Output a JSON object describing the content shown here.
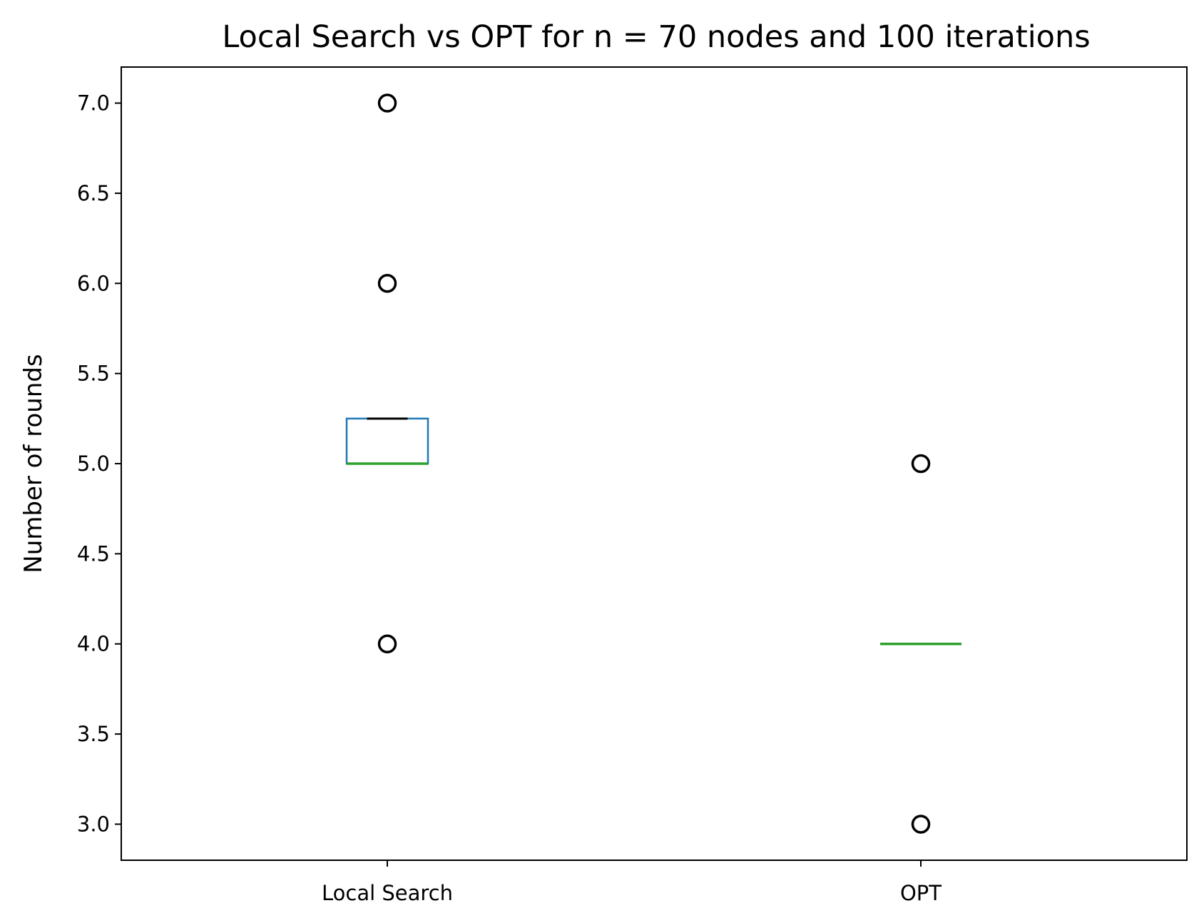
{
  "chart_data": {
    "type": "box",
    "title": "Local Search vs OPT for n = 70 nodes and 100 iterations",
    "xlabel": "",
    "ylabel": "Number of rounds",
    "ylim": [
      2.8,
      7.2
    ],
    "yticks": [
      "3.0",
      "3.5",
      "4.0",
      "4.5",
      "5.0",
      "5.5",
      "6.0",
      "6.5",
      "7.0"
    ],
    "categories": [
      "Local Search",
      "OPT"
    ],
    "boxes": [
      {
        "name": "Local Search",
        "q1": 5.0,
        "median": 5.0,
        "q3": 5.25,
        "whisker_low": 5.0,
        "whisker_high": 5.25,
        "outliers": [
          4,
          6,
          7
        ]
      },
      {
        "name": "OPT",
        "q1": 4.0,
        "median": 4.0,
        "q3": 4.0,
        "whisker_low": 4.0,
        "whisker_high": 4.0,
        "outliers": [
          3,
          5
        ]
      }
    ],
    "grid": false,
    "legend": "none",
    "colors": {
      "box": "#1f77b4",
      "median": "#2ca02c",
      "whisker": "#000000",
      "outlier": "#000000"
    }
  }
}
